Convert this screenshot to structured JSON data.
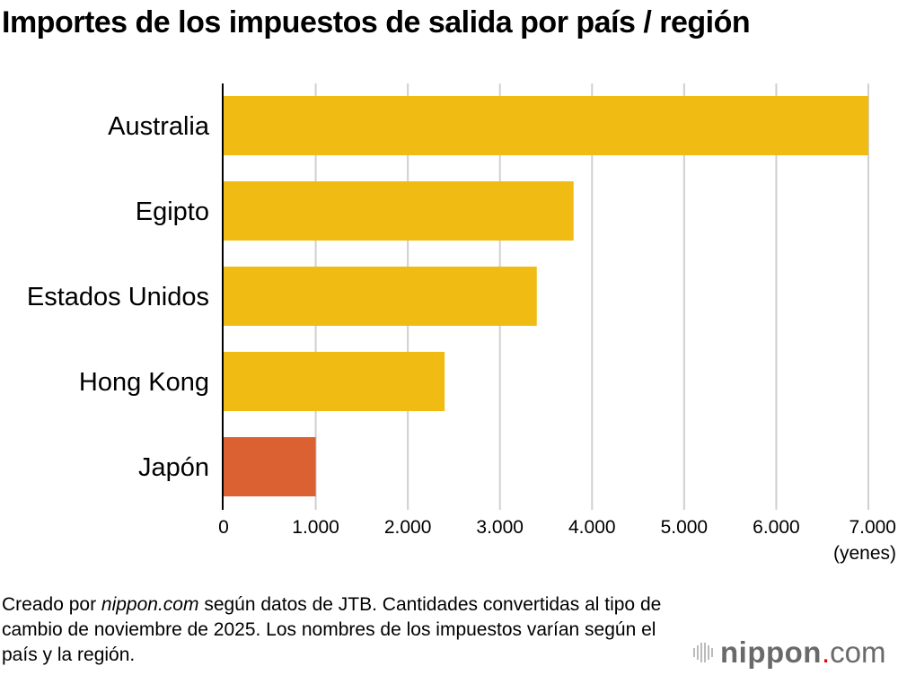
{
  "title": "Importes de los impuestos de salida por país / región",
  "chart_data": {
    "type": "bar",
    "orientation": "horizontal",
    "title": "Importes de los impuestos de salida por país / región",
    "categories": [
      "Australia",
      "Egipto",
      "Estados Unidos",
      "Hong Kong",
      "Japón"
    ],
    "values": [
      7000,
      3800,
      3400,
      2400,
      1000
    ],
    "colors": [
      "#f0bc14",
      "#f0bc14",
      "#f0bc14",
      "#f0bc14",
      "#dc6132"
    ],
    "xlim": [
      0,
      7000
    ],
    "xticks": [
      0,
      1000,
      2000,
      3000,
      4000,
      5000,
      6000,
      7000
    ],
    "xtick_labels": [
      "0",
      "1.000",
      "2.000",
      "3.000",
      "4.000",
      "5.000",
      "6.000",
      "7.000"
    ],
    "xlabel": "(yenes)",
    "ylabel": "",
    "grid": "vertical",
    "legend": "none"
  },
  "footer": {
    "prefix": "Creado por ",
    "source_italic": "nippon.com",
    "rest": " según datos de JTB. Cantidades convertidas al tipo de cambio de noviembre de 2025. Los nombres de los impuestos varían según el país y la región."
  },
  "logo": {
    "text": "nippon.com"
  }
}
